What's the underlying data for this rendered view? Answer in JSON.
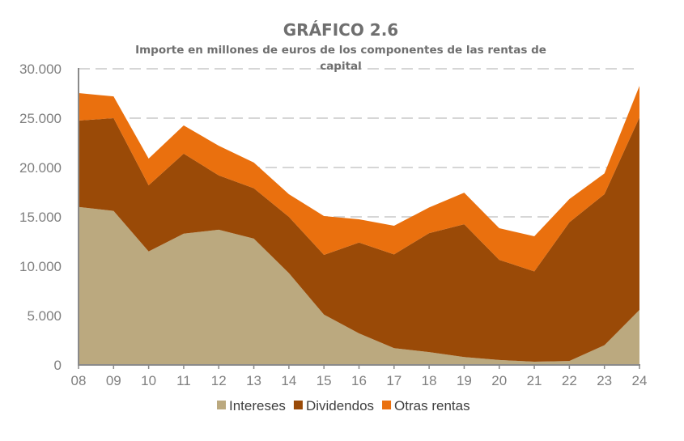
{
  "chart_data": {
    "type": "area",
    "stacked": true,
    "title": "GRÁFICO 2.6",
    "subtitle_lines": [
      "Importe en millones de euros de los componentes de las rentas de",
      "capital"
    ],
    "xlabel": "",
    "ylabel": "",
    "categories": [
      "08",
      "09",
      "10",
      "11",
      "12",
      "13",
      "14",
      "15",
      "16",
      "17",
      "18",
      "19",
      "20",
      "21",
      "22",
      "23",
      "24"
    ],
    "ylim": [
      0,
      30000
    ],
    "yticks": [
      0,
      5000,
      10000,
      15000,
      20000,
      25000,
      30000
    ],
    "ytick_labels": [
      "0",
      "5.000",
      "10.000",
      "15.000",
      "20.000",
      "25.000",
      "30.000"
    ],
    "grid": "horizontal dashed",
    "legend_position": "bottom",
    "series": [
      {
        "name": "Intereses",
        "color": "#bba97f",
        "values": [
          16000,
          15600,
          11500,
          13300,
          13700,
          12800,
          9300,
          5100,
          3200,
          1700,
          1300,
          800,
          500,
          330,
          400,
          2000,
          5570
        ]
      },
      {
        "name": "Dividendos",
        "color": "#9a4a07",
        "values": [
          8750,
          9400,
          6700,
          8100,
          5500,
          5100,
          5700,
          6050,
          9200,
          9500,
          12050,
          13450,
          10150,
          9150,
          14050,
          15300,
          19500
        ]
      },
      {
        "name": "Otras rentas",
        "color": "#ea700e",
        "values": [
          2790,
          2200,
          2700,
          2860,
          3000,
          2600,
          2300,
          3930,
          2350,
          2900,
          2600,
          3200,
          3200,
          3550,
          2350,
          2100,
          3200
        ]
      }
    ]
  }
}
